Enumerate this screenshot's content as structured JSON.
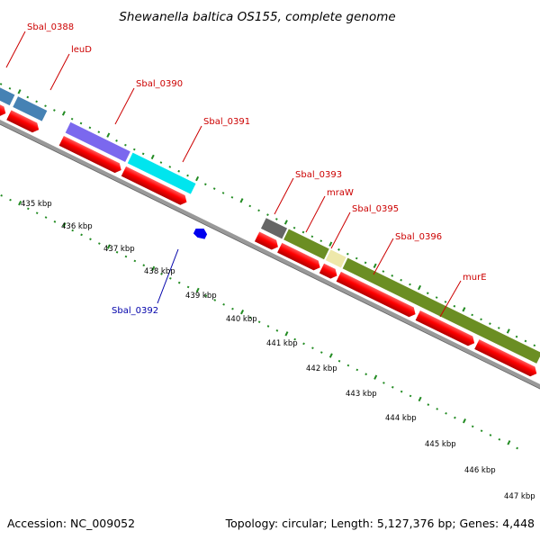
{
  "title": "Shewanella baltica OS155, complete genome",
  "accession": "Accession: NC_009052",
  "topology": "Topology: circular; Length: 5,127,376 bp; Genes: 4,448",
  "colors": {
    "label_forward": "#cc0000",
    "label_reverse": "#0000aa",
    "cds_arrow": "#ff0000",
    "backbone": "#999999",
    "tick": "#228B22"
  },
  "gene_labels": [
    {
      "text": "Sbal_0388",
      "color": "#cc0000"
    },
    {
      "text": "leuD",
      "color": "#cc0000"
    },
    {
      "text": "Sbal_0390",
      "color": "#cc0000"
    },
    {
      "text": "Sbal_0391",
      "color": "#cc0000"
    },
    {
      "text": "Sbal_0393",
      "color": "#cc0000"
    },
    {
      "text": "mraW",
      "color": "#cc0000"
    },
    {
      "text": "Sbal_0395",
      "color": "#cc0000"
    },
    {
      "text": "Sbal_0396",
      "color": "#cc0000"
    },
    {
      "text": "murE",
      "color": "#cc0000"
    },
    {
      "text": "Sbal_0392",
      "color": "#0000aa"
    }
  ],
  "kbp_labels": [
    "435 kbp",
    "436 kbp",
    "437 kbp",
    "438 kbp",
    "439 kbp",
    "440 kbp",
    "441 kbp",
    "442 kbp",
    "443 kbp",
    "444 kbp",
    "445 kbp",
    "446 kbp",
    "447 kbp"
  ],
  "feature_colors": [
    "#4682b4",
    "#4682b4",
    "#7b68ee",
    "#00ffff",
    "#666666",
    "#6b8e23",
    "#eee8aa",
    "#6b8e23"
  ]
}
